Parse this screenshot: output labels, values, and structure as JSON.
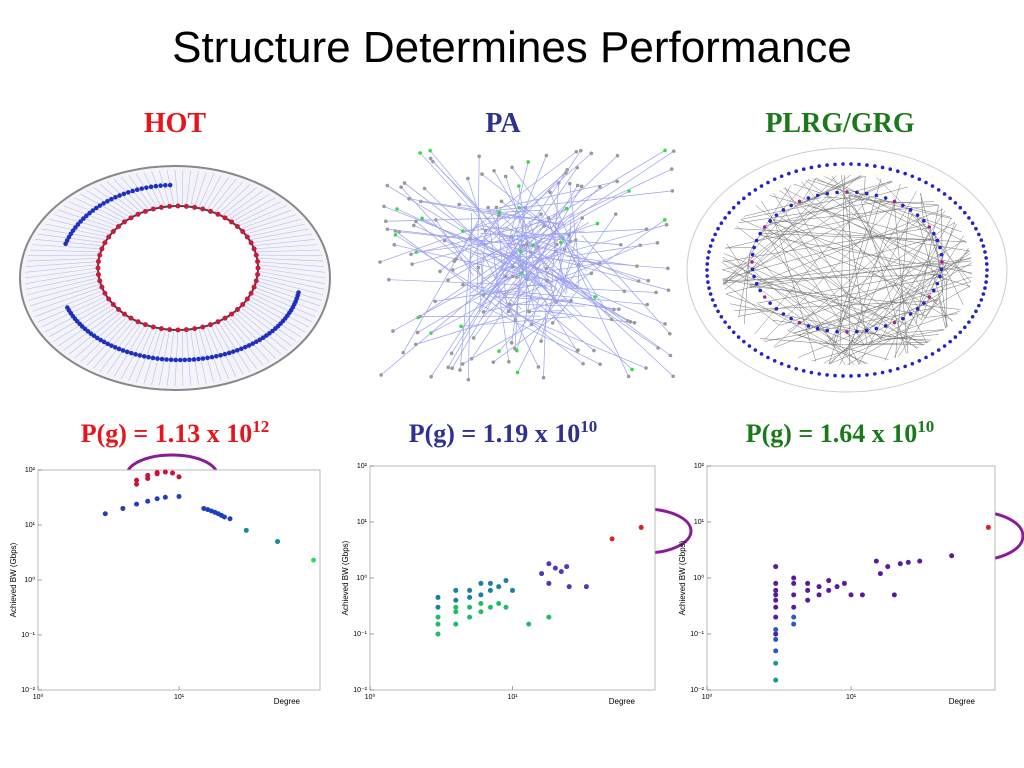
{
  "title": "Structure Determines Performance",
  "panels": [
    {
      "label": "HOT",
      "formula": "P(g) = 1.13 x 10",
      "exponent": "12",
      "color": "#e8141b"
    },
    {
      "label": "PA",
      "formula": "P(g) = 1.19 x 10",
      "exponent": "10",
      "color": "#2e3192"
    },
    {
      "label": "PLRG/GRG",
      "formula": "P(g) = 1.64 x 10",
      "exponent": "10",
      "color": "#1a7a1a"
    }
  ],
  "chart_data": [
    {
      "type": "scatter",
      "xlabel": "Degree",
      "ylabel": "Achieved BW (Gbps)",
      "xlog": true,
      "ylog": true,
      "xlim": [
        1,
        100
      ],
      "ylim": [
        0.01,
        100
      ],
      "xticks": [
        {
          "value": 1,
          "label": "10⁰"
        },
        {
          "value": 10,
          "label": "10¹"
        }
      ],
      "yticks": [
        {
          "value": 0.01,
          "label": "10⁻²"
        },
        {
          "value": 0.1,
          "label": "10⁻¹"
        },
        {
          "value": 1,
          "label": "10⁰"
        },
        {
          "value": 10,
          "label": "10¹"
        },
        {
          "value": 100,
          "label": "10²"
        }
      ],
      "series": [
        {
          "color": "#d0103a",
          "x": [
            5,
            5,
            6,
            6,
            7,
            7,
            8,
            9,
            10
          ],
          "values": [
            55,
            65,
            70,
            80,
            85,
            90,
            92,
            88,
            75
          ]
        },
        {
          "color": "#1f3fbf",
          "x": [
            3,
            4,
            5,
            6,
            7,
            8,
            10,
            15,
            16,
            17,
            18,
            19,
            20,
            21,
            23
          ],
          "values": [
            16,
            20,
            24,
            27,
            30,
            32,
            33,
            20,
            19,
            18,
            17,
            16,
            15,
            14,
            13
          ]
        },
        {
          "color": "#1a8a9a",
          "x": [
            30,
            50
          ],
          "values": [
            8,
            5
          ]
        },
        {
          "color": "#33dd55",
          "x": [
            90
          ],
          "values": [
            2.3
          ]
        }
      ]
    },
    {
      "type": "scatter",
      "xlabel": "Degree",
      "ylabel": "Achieved BW (Gbps)",
      "xlog": true,
      "ylog": true,
      "xlim": [
        1,
        100
      ],
      "ylim": [
        0.01,
        100
      ],
      "xticks": [
        {
          "value": 1,
          "label": "10⁰"
        },
        {
          "value": 10,
          "label": "10¹"
        }
      ],
      "yticks": [
        {
          "value": 0.01,
          "label": "10⁻²"
        },
        {
          "value": 0.1,
          "label": "10⁻¹"
        },
        {
          "value": 1,
          "label": "10⁰"
        },
        {
          "value": 10,
          "label": "10¹"
        },
        {
          "value": 100,
          "label": "10²"
        }
      ],
      "series": [
        {
          "color": "#22bb66",
          "x": [
            3,
            3,
            3,
            4,
            4,
            4,
            5,
            5,
            6,
            6,
            7,
            8,
            9,
            13,
            18
          ],
          "values": [
            0.1,
            0.15,
            0.2,
            0.15,
            0.25,
            0.3,
            0.2,
            0.3,
            0.25,
            0.35,
            0.3,
            0.35,
            0.3,
            0.15,
            0.2
          ]
        },
        {
          "color": "#1a7fa0",
          "x": [
            3,
            3,
            4,
            4,
            5,
            5,
            6,
            6,
            7,
            7,
            8,
            9,
            10
          ],
          "values": [
            0.3,
            0.45,
            0.4,
            0.6,
            0.45,
            0.6,
            0.5,
            0.8,
            0.6,
            0.8,
            0.7,
            0.9,
            0.6
          ]
        },
        {
          "color": "#4a3ab8",
          "x": [
            16,
            18,
            20,
            22,
            24,
            18,
            25,
            33
          ],
          "values": [
            1.2,
            1.8,
            1.5,
            1.3,
            1.6,
            0.8,
            0.7,
            0.7
          ]
        },
        {
          "color": "#e02020",
          "x": [
            50,
            80
          ],
          "values": [
            5,
            8
          ]
        }
      ]
    },
    {
      "type": "scatter",
      "xlabel": "Degree",
      "ylabel": "Achieved BW (Gbps)",
      "xlog": true,
      "ylog": true,
      "xlim": [
        1,
        100
      ],
      "ylim": [
        0.01,
        100
      ],
      "xticks": [
        {
          "value": 1,
          "label": "10⁰"
        },
        {
          "value": 10,
          "label": "10¹"
        }
      ],
      "yticks": [
        {
          "value": 0.01,
          "label": "10⁻²"
        },
        {
          "value": 0.1,
          "label": "10⁻¹"
        },
        {
          "value": 1,
          "label": "10⁰"
        },
        {
          "value": 10,
          "label": "10¹"
        },
        {
          "value": 100,
          "label": "10²"
        }
      ],
      "series": [
        {
          "color": "#5a1a9a",
          "x": [
            3,
            3,
            3,
            3,
            3,
            3,
            3,
            3,
            4,
            4,
            4,
            4,
            5,
            5,
            5,
            6,
            6,
            7,
            7,
            8,
            9,
            10,
            12,
            15,
            16,
            18,
            20,
            22,
            25,
            30,
            50
          ],
          "values": [
            0.3,
            0.5,
            0.8,
            1.6,
            0.2,
            0.1,
            0.4,
            0.6,
            0.3,
            0.5,
            0.8,
            1.0,
            0.4,
            0.6,
            0.8,
            0.5,
            0.7,
            0.6,
            0.9,
            0.7,
            0.8,
            0.5,
            0.5,
            2.0,
            1.2,
            1.6,
            0.5,
            1.8,
            1.9,
            2.0,
            2.5
          ]
        },
        {
          "color": "#2a5ac0",
          "x": [
            3,
            3,
            3,
            4,
            4
          ],
          "values": [
            0.05,
            0.08,
            0.12,
            0.15,
            0.2
          ]
        },
        {
          "color": "#1a9a8a",
          "x": [
            3,
            3
          ],
          "values": [
            0.015,
            0.03
          ]
        },
        {
          "color": "#e02020",
          "x": [
            90
          ],
          "values": [
            8
          ]
        }
      ]
    }
  ]
}
